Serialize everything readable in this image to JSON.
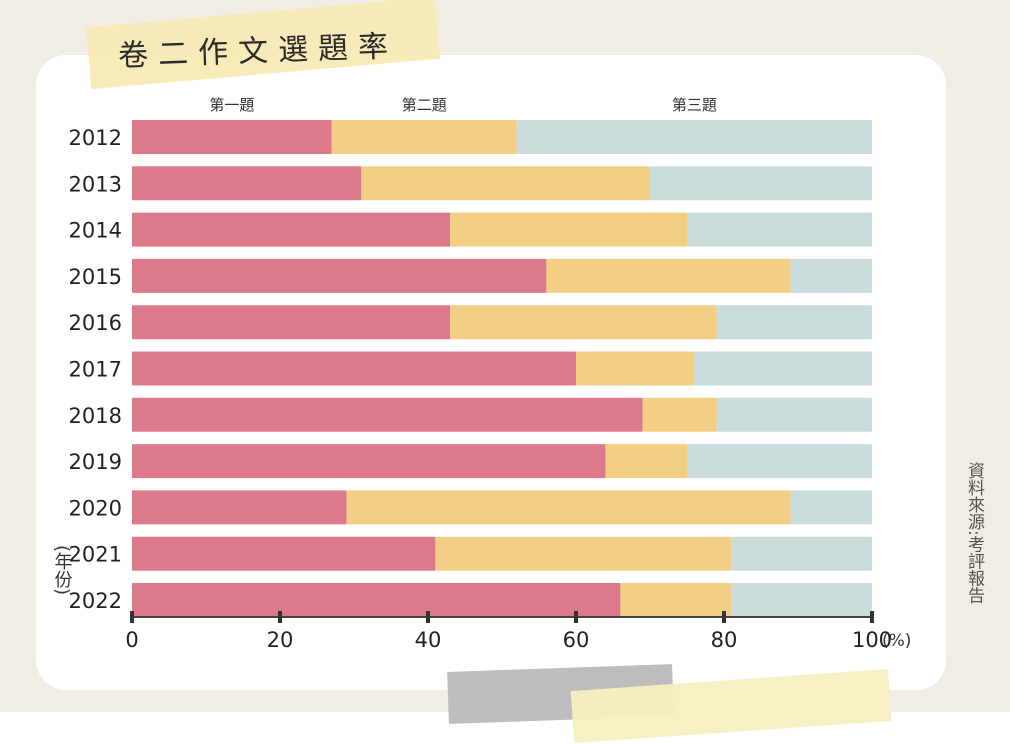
{
  "title": "卷二作文選題率",
  "source": "資料來源:考評報告",
  "colors": {
    "q1": "#dc7a8c",
    "q2": "#f3cf86",
    "q3": "#cbdcdc"
  },
  "chart_data": {
    "type": "bar",
    "orientation": "horizontal",
    "stacked": true,
    "title": "卷二作文選題率",
    "xlabel": "(%)",
    "ylabel": "(年份)",
    "xlim": [
      0,
      100
    ],
    "xticks": [
      "0",
      "20",
      "40",
      "60",
      "80",
      "100"
    ],
    "legend_placement": "top",
    "categories": [
      "2012",
      "2013",
      "2014",
      "2015",
      "2016",
      "2017",
      "2018",
      "2019",
      "2020",
      "2021",
      "2022"
    ],
    "series": [
      {
        "name": "第一題",
        "values": [
          27,
          31,
          43,
          56,
          43,
          60,
          69,
          64,
          29,
          41,
          66
        ]
      },
      {
        "name": "第二題",
        "values": [
          25,
          39,
          32,
          33,
          36,
          16,
          10,
          11,
          60,
          40,
          15
        ]
      },
      {
        "name": "第三題",
        "values": [
          48,
          30,
          25,
          11,
          21,
          24,
          21,
          25,
          11,
          19,
          19
        ]
      }
    ]
  }
}
